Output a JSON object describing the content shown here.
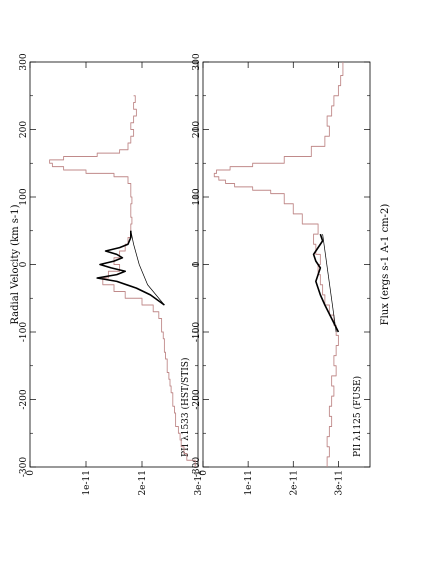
{
  "figure": {
    "ylabel": "Flux (ergs s-1 A-1 cm-2)",
    "xlabel": "Radial Velocity (km s-1)"
  },
  "colors": {
    "spectrum": "#c08a8a",
    "model": "#000000",
    "axes": "#000000"
  },
  "chart_data": [
    {
      "type": "line",
      "panel_label": "PII   λ1125 (FUSE)",
      "xlim": [
        -300,
        300
      ],
      "ylim": [
        0,
        3.7e-11
      ],
      "xticks": [
        -300,
        -200,
        -100,
        0,
        100,
        200,
        300
      ],
      "xtick_labels": [
        "-300",
        "-200",
        "-100",
        "0",
        "100",
        "200",
        "300"
      ],
      "yticks": [
        0,
        1e-11,
        2e-11,
        3e-11
      ],
      "ytick_labels": [
        "0",
        "1e-11",
        "2e-11",
        "3e-11"
      ],
      "series": [
        {
          "role": "observed",
          "step": true,
          "x": [
            -300,
            -285,
            -270,
            -255,
            -240,
            -225,
            -210,
            -195,
            -180,
            -165,
            -150,
            -135,
            -120,
            -105,
            -90,
            -75,
            -60,
            -45,
            -30,
            -15,
            0,
            15,
            30,
            45,
            60,
            75,
            90,
            105,
            110,
            115,
            120,
            125,
            130,
            135,
            140,
            145,
            150,
            160,
            175,
            190,
            205,
            220,
            235,
            250,
            265,
            280,
            300
          ],
          "y": [
            2.75e-11,
            2.8e-11,
            2.75e-11,
            2.8e-11,
            2.85e-11,
            2.8e-11,
            2.85e-11,
            2.9e-11,
            2.85e-11,
            2.95e-11,
            2.9e-11,
            2.95e-11,
            3e-11,
            2.95e-11,
            2.9e-11,
            2.8e-11,
            2.7e-11,
            2.65e-11,
            2.6e-11,
            2.55e-11,
            2.6e-11,
            2.5e-11,
            2.45e-11,
            2.55e-11,
            2.2e-11,
            2e-11,
            1.8e-11,
            1.5e-11,
            1.1e-11,
            7e-12,
            5e-12,
            3.5e-12,
            2.5e-12,
            3e-12,
            6e-12,
            1.1e-11,
            1.8e-11,
            2.4e-11,
            2.7e-11,
            2.8e-11,
            2.75e-11,
            2.85e-11,
            2.9e-11,
            3e-11,
            3.05e-11,
            3.1e-11,
            3.1e-11
          ]
        },
        {
          "role": "model",
          "x": [
            -100,
            -80,
            -60,
            -45,
            -35,
            -25,
            -15,
            -5,
            5,
            15,
            25,
            35,
            45
          ],
          "y": [
            3e-11,
            2.85e-11,
            2.7e-11,
            2.6e-11,
            2.55e-11,
            2.5e-11,
            2.55e-11,
            2.6e-11,
            2.5e-11,
            2.45e-11,
            2.55e-11,
            2.65e-11,
            2.6e-11
          ]
        },
        {
          "role": "continuum",
          "x": [
            -100,
            45
          ],
          "y": [
            2.95e-11,
            2.65e-11
          ]
        }
      ]
    },
    {
      "type": "line",
      "panel_label": "PII   λ1533 (HST/STIS)",
      "xlim": [
        -300,
        300
      ],
      "ylim": [
        0,
        3e-11
      ],
      "xticks": [
        -300,
        -200,
        -100,
        0,
        100,
        200,
        300
      ],
      "xtick_labels": [
        "-300",
        "-200",
        "-100",
        "0",
        "100",
        "200",
        "300"
      ],
      "yticks": [
        0,
        1e-11,
        2e-11,
        3e-11
      ],
      "ytick_labels": [
        "0",
        "1e-11",
        "2e-11",
        "3e-11"
      ],
      "series": [
        {
          "role": "observed",
          "step": true,
          "x": [
            -300,
            -290,
            -280,
            -270,
            -260,
            -250,
            -240,
            -230,
            -220,
            -210,
            -200,
            -190,
            -180,
            -170,
            -160,
            -150,
            -140,
            -130,
            -120,
            -110,
            -100,
            -90,
            -80,
            -70,
            -60,
            -50,
            -40,
            -30,
            -20,
            -10,
            0,
            10,
            20,
            30,
            40,
            50,
            60,
            70,
            80,
            90,
            100,
            110,
            120,
            130,
            135,
            140,
            145,
            150,
            155,
            160,
            165,
            170,
            180,
            190,
            200,
            210,
            220,
            230,
            240,
            250
          ],
          "y": [
            2.95e-11,
            2.8e-11,
            2.75e-11,
            2.7e-11,
            2.68e-11,
            2.65e-11,
            2.6e-11,
            2.6e-11,
            2.58e-11,
            2.55e-11,
            2.55e-11,
            2.52e-11,
            2.5e-11,
            2.48e-11,
            2.45e-11,
            2.45e-11,
            2.42e-11,
            2.4e-11,
            2.4e-11,
            2.38e-11,
            2.35e-11,
            2.35e-11,
            2.3e-11,
            2.2e-11,
            2e-11,
            1.7e-11,
            1.5e-11,
            1.3e-11,
            1.4e-11,
            1.6e-11,
            1.5e-11,
            1.6e-11,
            1.7e-11,
            1.75e-11,
            1.8e-11,
            1.8e-11,
            1.82e-11,
            1.8e-11,
            1.8e-11,
            1.82e-11,
            1.8e-11,
            1.8e-11,
            1.75e-11,
            1.5e-11,
            1e-11,
            6e-12,
            4e-12,
            3.5e-12,
            6e-12,
            1.2e-11,
            1.6e-11,
            1.75e-11,
            1.8e-11,
            1.85e-11,
            1.8e-11,
            1.85e-11,
            1.9e-11,
            1.85e-11,
            1.88e-11,
            1.85e-11
          ]
        },
        {
          "role": "model",
          "x": [
            -60,
            -45,
            -35,
            -25,
            -20,
            -15,
            -10,
            -5,
            0,
            5,
            10,
            15,
            20,
            25,
            30,
            40,
            50
          ],
          "y": [
            2.4e-11,
            2.15e-11,
            1.9e-11,
            1.55e-11,
            1.2e-11,
            1.55e-11,
            1.7e-11,
            1.45e-11,
            1.25e-11,
            1.5e-11,
            1.65e-11,
            1.55e-11,
            1.35e-11,
            1.6e-11,
            1.75e-11,
            1.8e-11,
            1.8e-11
          ]
        },
        {
          "role": "continuum",
          "x": [
            -60,
            -30,
            0,
            30,
            50
          ],
          "y": [
            2.4e-11,
            2.1e-11,
            1.95e-11,
            1.85e-11,
            1.8e-11
          ]
        }
      ]
    }
  ]
}
